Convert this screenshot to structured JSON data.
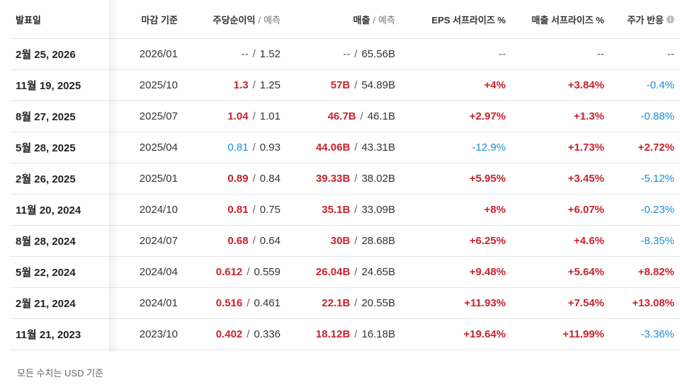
{
  "headers": {
    "date": "발표일",
    "period": "마감 기준",
    "eps": "주당순이익",
    "eps_hint": "예측",
    "revenue": "매출",
    "revenue_hint": "예측",
    "eps_surprise": "EPS 서프라이즈 %",
    "revenue_surprise": "매출 서프라이즈 %",
    "reaction": "주가 반응"
  },
  "rows": [
    {
      "date": "2월 25, 2026",
      "period": "2026/01",
      "eps_actual": "--",
      "eps_est": "1.52",
      "rev_actual": "--",
      "rev_est": "65.56B",
      "eps_surprise": "--",
      "rev_surprise": "--",
      "reaction": "--"
    },
    {
      "date": "11월 19, 2025",
      "period": "2025/10",
      "eps_actual": "1.3",
      "eps_est": "1.25",
      "rev_actual": "57B",
      "rev_est": "54.89B",
      "eps_surprise": "+4%",
      "rev_surprise": "+3.84%",
      "reaction": "-0.4%"
    },
    {
      "date": "8월 27, 2025",
      "period": "2025/07",
      "eps_actual": "1.04",
      "eps_est": "1.01",
      "rev_actual": "46.7B",
      "rev_est": "46.1B",
      "eps_surprise": "+2.97%",
      "rev_surprise": "+1.3%",
      "reaction": "-0.88%"
    },
    {
      "date": "5월 28, 2025",
      "period": "2025/04",
      "eps_actual": "0.81",
      "eps_est": "0.93",
      "rev_actual": "44.06B",
      "rev_est": "43.31B",
      "eps_surprise": "-12.9%",
      "rev_surprise": "+1.73%",
      "reaction": "+2.72%"
    },
    {
      "date": "2월 26, 2025",
      "period": "2025/01",
      "eps_actual": "0.89",
      "eps_est": "0.84",
      "rev_actual": "39.33B",
      "rev_est": "38.02B",
      "eps_surprise": "+5.95%",
      "rev_surprise": "+3.45%",
      "reaction": "-5.12%"
    },
    {
      "date": "11월 20, 2024",
      "period": "2024/10",
      "eps_actual": "0.81",
      "eps_est": "0.75",
      "rev_actual": "35.1B",
      "rev_est": "33.09B",
      "eps_surprise": "+8%",
      "rev_surprise": "+6.07%",
      "reaction": "-0.23%"
    },
    {
      "date": "8월 28, 2024",
      "period": "2024/07",
      "eps_actual": "0.68",
      "eps_est": "0.64",
      "rev_actual": "30B",
      "rev_est": "28.68B",
      "eps_surprise": "+6.25%",
      "rev_surprise": "+4.6%",
      "reaction": "-8.35%"
    },
    {
      "date": "5월 22, 2024",
      "period": "2024/04",
      "eps_actual": "0.612",
      "eps_est": "0.559",
      "rev_actual": "26.04B",
      "rev_est": "24.65B",
      "eps_surprise": "+9.48%",
      "rev_surprise": "+5.64%",
      "reaction": "+8.82%"
    },
    {
      "date": "2월 21, 2024",
      "period": "2024/01",
      "eps_actual": "0.516",
      "eps_est": "0.461",
      "rev_actual": "22.1B",
      "rev_est": "20.55B",
      "eps_surprise": "+11.93%",
      "rev_surprise": "+7.54%",
      "reaction": "+13.08%"
    },
    {
      "date": "11월 21, 2023",
      "period": "2023/10",
      "eps_actual": "0.402",
      "eps_est": "0.336",
      "rev_actual": "18.12B",
      "rev_est": "16.18B",
      "eps_surprise": "+19.64%",
      "rev_surprise": "+11.99%",
      "reaction": "-3.36%"
    }
  ],
  "colors": {
    "positive": "#c8232c",
    "negative": "#1c8fd6",
    "neutral": "#555555"
  },
  "icons": {
    "reaction_info": "info-icon"
  },
  "footnote": "모든 수치는 USD 기준"
}
